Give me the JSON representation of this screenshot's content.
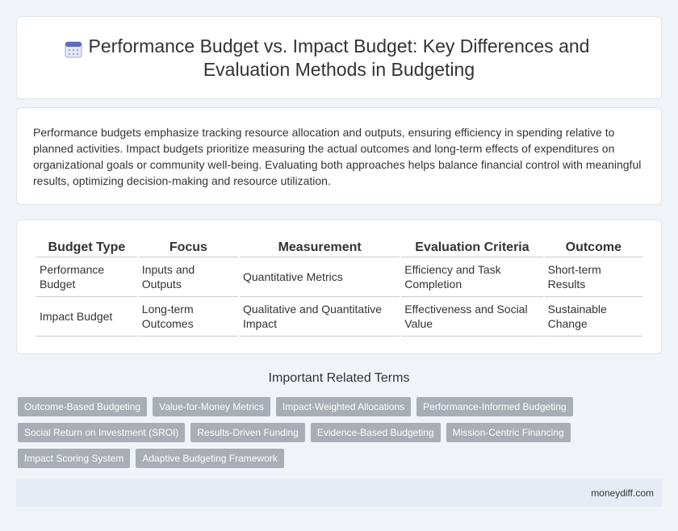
{
  "header": {
    "title": "Performance Budget vs. Impact Budget: Key Differences and Evaluation Methods in Budgeting"
  },
  "intro": "Performance budgets emphasize tracking resource allocation and outputs, ensuring efficiency in spending relative to planned activities. Impact budgets prioritize measuring the actual outcomes and long-term effects of expenditures on organizational goals or community well-being. Evaluating both approaches helps balance financial control with meaningful results, optimizing decision-making and resource utilization.",
  "table": {
    "headers": [
      "Budget Type",
      "Focus",
      "Measurement",
      "Evaluation Criteria",
      "Outcome"
    ],
    "rows": [
      [
        "Performance Budget",
        "Inputs and Outputs",
        "Quantitative Metrics",
        "Efficiency and Task Completion",
        "Short-term Results"
      ],
      [
        "Impact Budget",
        "Long-term Outcomes",
        "Qualitative and Quantitative Impact",
        "Effectiveness and Social Value",
        "Sustainable Change"
      ]
    ]
  },
  "related": {
    "title": "Important Related Terms",
    "terms": [
      "Outcome-Based Budgeting",
      "Value-for-Money Metrics",
      "Impact-Weighted Allocations",
      "Performance-Informed Budgeting",
      "Social Return on Investment (SROI)",
      "Results-Driven Funding",
      "Evidence-Based Budgeting",
      "Mission-Centric Financing",
      "Impact Scoring System",
      "Adaptive Budgeting Framework"
    ]
  },
  "footer": "moneydiff.com"
}
